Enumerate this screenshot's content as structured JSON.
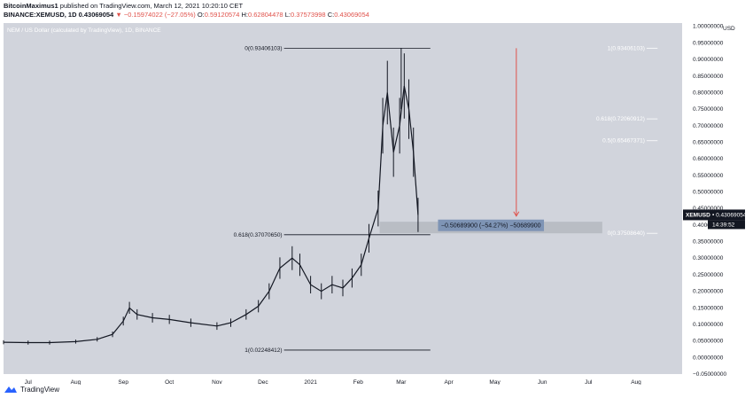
{
  "header": {
    "author": "BitcoinMaximus1",
    "published_text": "published on TradingView.com, March 12, 2021 10:20:10 CET",
    "symbol": "BINANCE:XEMUSD, 1D",
    "last": "0.43069054",
    "change": "▼ −0.15974022 (−27.05%)",
    "o_label": "O:",
    "o_value": "0.59120574",
    "h_label": "H:",
    "h_value": "0.62804478",
    "l_label": "L:",
    "l_value": "0.37573998",
    "c_label": "C:",
    "c_value": "0.43069054"
  },
  "footer": {
    "brand": "TradingView"
  },
  "chart_data": {
    "type": "candlestick",
    "title": "NEM / US Dollar (calculated by TradingView), 1D, BINANCE",
    "currency": "USD",
    "yaxis_ticks": [
      "1.00000000",
      "0.95000000",
      "0.90000000",
      "0.85000000",
      "0.80000000",
      "0.75000000",
      "0.70000000",
      "0.65000000",
      "0.60000000",
      "0.55000000",
      "0.50000000",
      "0.45000000",
      "0.40000000",
      "0.35000000",
      "0.30000000",
      "0.25000000",
      "0.20000000",
      "0.15000000",
      "0.10000000",
      "0.05000000",
      "0.00000000",
      "−0.05000000"
    ],
    "ylim": [
      -0.05,
      1.01
    ],
    "xaxis_ticks": [
      "Jul",
      "Aug",
      "Sep",
      "Oct",
      "Nov",
      "Dec",
      "2021",
      "Feb",
      "Mar",
      "Apr",
      "May",
      "Jun",
      "Jul",
      "Aug"
    ],
    "price_points": [
      [
        "2020-06-15",
        0.046
      ],
      [
        "2020-07-01",
        0.045
      ],
      [
        "2020-07-15",
        0.045
      ],
      [
        "2020-08-01",
        0.048
      ],
      [
        "2020-08-15",
        0.055
      ],
      [
        "2020-08-25",
        0.07
      ],
      [
        "2020-09-01",
        0.11
      ],
      [
        "2020-09-05",
        0.15
      ],
      [
        "2020-09-10",
        0.13
      ],
      [
        "2020-09-20",
        0.12
      ],
      [
        "2020-10-01",
        0.115
      ],
      [
        "2020-10-15",
        0.105
      ],
      [
        "2020-11-01",
        0.095
      ],
      [
        "2020-11-10",
        0.105
      ],
      [
        "2020-11-20",
        0.13
      ],
      [
        "2020-11-28",
        0.155
      ],
      [
        "2020-12-05",
        0.2
      ],
      [
        "2020-12-12",
        0.27
      ],
      [
        "2020-12-20",
        0.3
      ],
      [
        "2020-12-25",
        0.28
      ],
      [
        "2021-01-01",
        0.22
      ],
      [
        "2021-01-08",
        0.2
      ],
      [
        "2021-01-15",
        0.22
      ],
      [
        "2021-01-22",
        0.21
      ],
      [
        "2021-01-28",
        0.24
      ],
      [
        "2021-02-03",
        0.28
      ],
      [
        "2021-02-08",
        0.36
      ],
      [
        "2021-02-14",
        0.45
      ],
      [
        "2021-02-17",
        0.7
      ],
      [
        "2021-02-20",
        0.8
      ],
      [
        "2021-02-24",
        0.62
      ],
      [
        "2021-02-28",
        0.7
      ],
      [
        "2021-03-03",
        0.82
      ],
      [
        "2021-03-06",
        0.75
      ],
      [
        "2021-03-09",
        0.62
      ],
      [
        "2021-03-12",
        0.43069054
      ]
    ],
    "fib_levels": [
      {
        "label": "0(0.93406103)",
        "value": 0.93406103
      },
      {
        "label": "0.618(0.37070650)",
        "value": 0.3707065
      },
      {
        "label": "1(0.02248412)",
        "value": 0.02248412
      },
      {
        "label": "1(0.93406103)",
        "value": 0.93406103
      },
      {
        "label": "0.618(0.72060912)",
        "value": 0.72060912
      },
      {
        "label": "0.5(0.65467371)",
        "value": 0.65467371
      },
      {
        "label": "0(0.37508640)",
        "value": 0.3750864
      }
    ],
    "measure": {
      "text": "−0.50689900 (−54.27%) −50689900",
      "from": 0.93406103,
      "to": 0.42716203
    },
    "last_price_label": {
      "symbol": "XEMUSD",
      "value": "0.43069054",
      "countdown": "14:39:52"
    },
    "colors": {
      "background": "#d1d4dc",
      "price": "#131722",
      "measure_arrow": "#e0524b",
      "measure_box": "#7e94b5",
      "range_box": "#b5b8c0",
      "label_bg": "#131722"
    }
  }
}
